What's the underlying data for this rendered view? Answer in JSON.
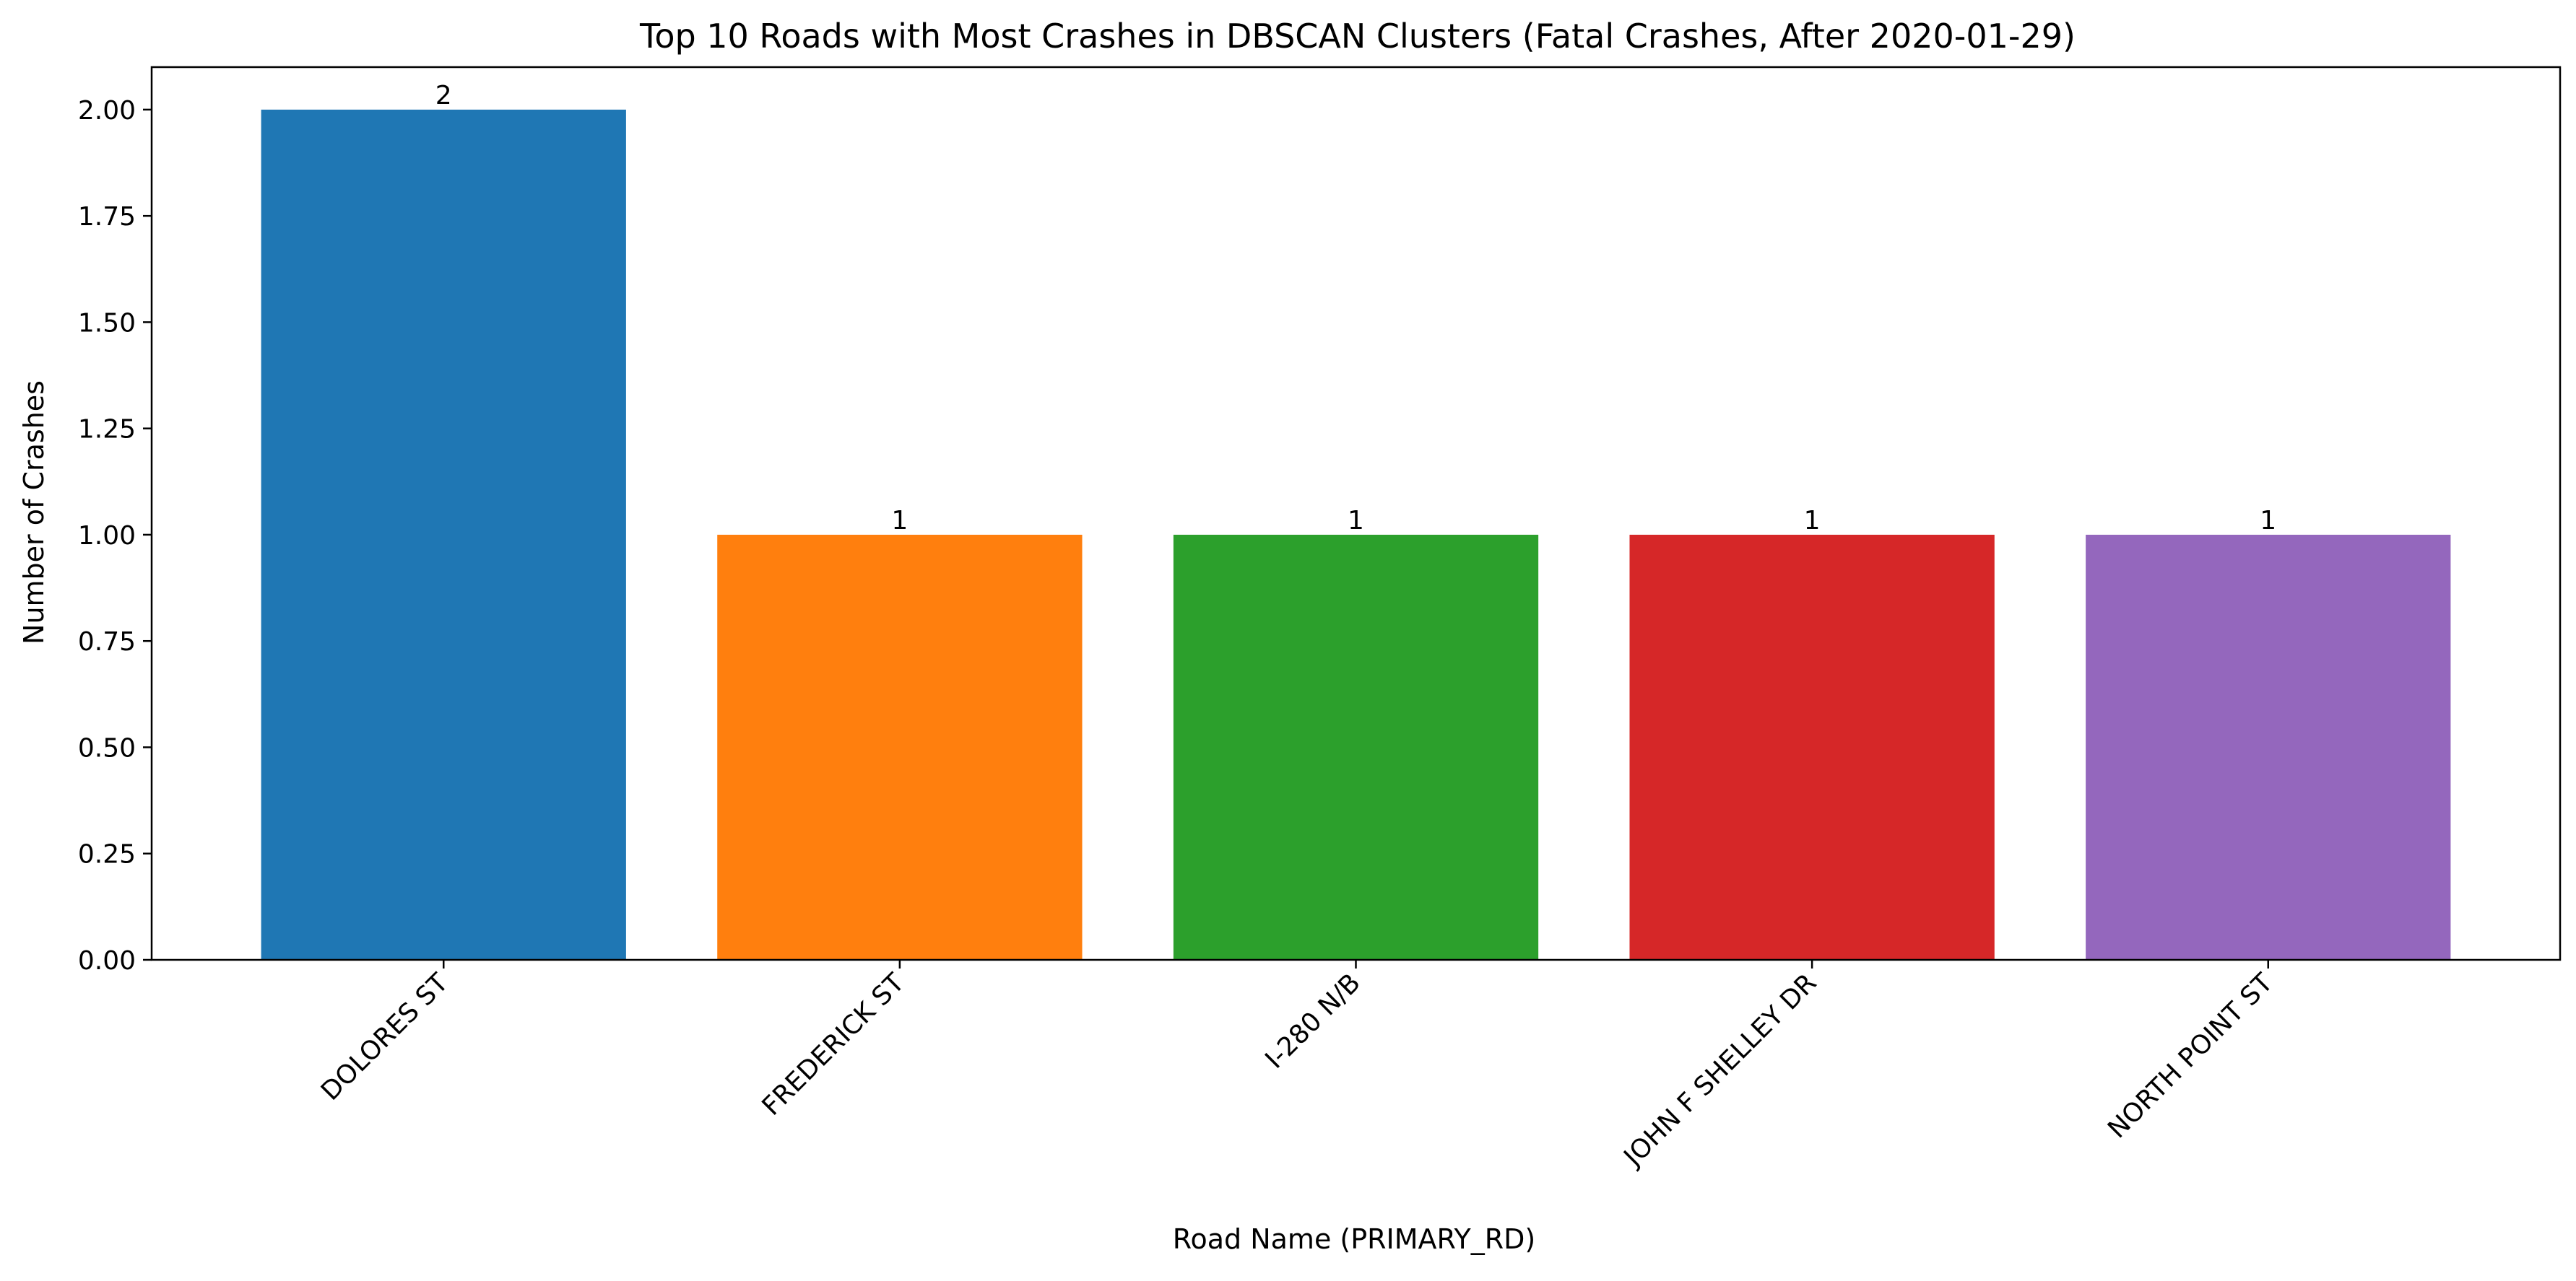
{
  "chart_data": {
    "type": "bar",
    "title": "Top 10 Roads with Most Crashes in DBSCAN Clusters (Fatal Crashes, After 2020-01-29)",
    "xlabel": "Road Name (PRIMARY_RD)",
    "ylabel": "Number of Crashes",
    "categories": [
      "DOLORES ST",
      "FREDERICK ST",
      "I-280 N/B",
      "JOHN F SHELLEY DR",
      "NORTH POINT ST"
    ],
    "values": [
      2,
      1,
      1,
      1,
      1
    ],
    "data_labels": [
      "2",
      "1",
      "1",
      "1",
      "1"
    ],
    "colors": [
      "#1f77b4",
      "#ff7f0e",
      "#2ca02c",
      "#d62728",
      "#9467bd"
    ],
    "ylim": [
      0,
      2.1
    ],
    "yticks": [
      0,
      0.25,
      0.5,
      0.75,
      1.0,
      1.25,
      1.5,
      1.75,
      2.0
    ],
    "ytick_labels": [
      "0.00",
      "0.25",
      "0.50",
      "0.75",
      "1.00",
      "1.25",
      "1.50",
      "1.75",
      "2.00"
    ],
    "grid": false,
    "legend": "none"
  }
}
